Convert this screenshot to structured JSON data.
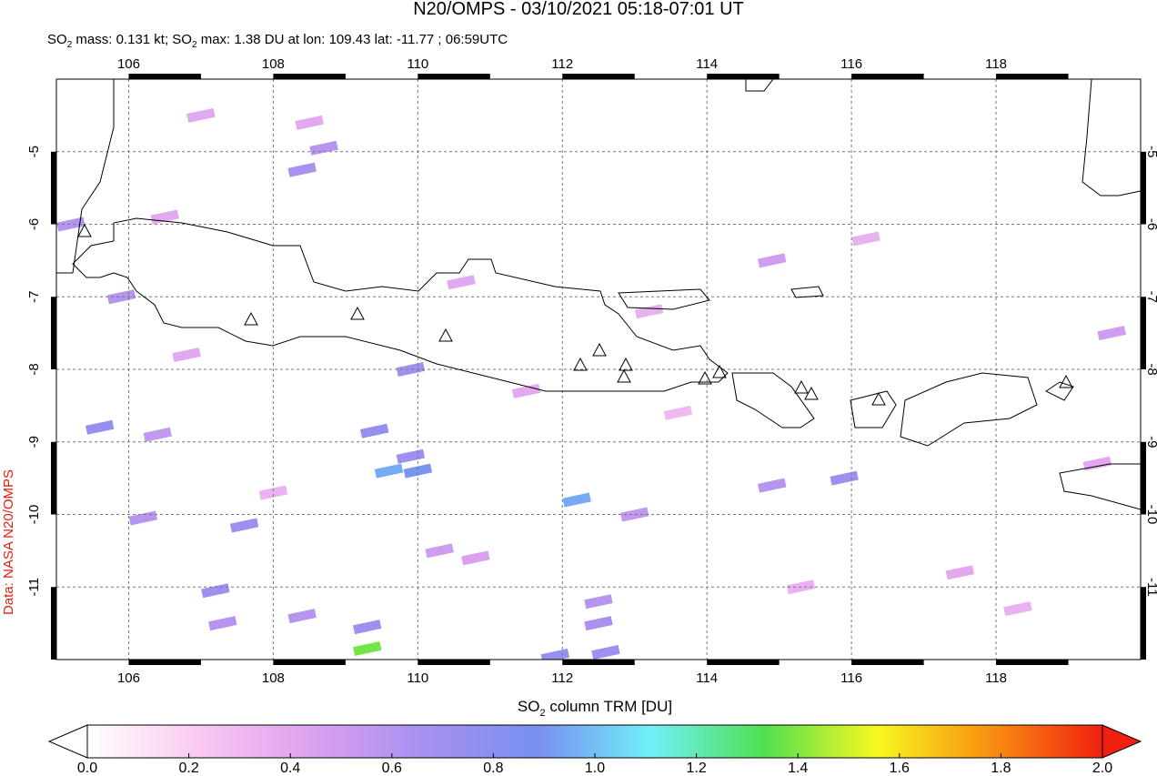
{
  "chart_data": {
    "type": "map",
    "title": "N20/OMPS - 03/10/2021 05:18-07:01 UT",
    "subtitle": [
      "SO",
      "2",
      " mass: 0.131 kt; SO",
      "2",
      " max: 1.38 DU at lon: 109.43 lat: -11.77 ; 06:59UTC"
    ],
    "credit": "Data: NASA N20/OMPS",
    "xlim": [
      105,
      120
    ],
    "ylim": [
      -12,
      -4
    ],
    "xticks": [
      106,
      108,
      110,
      112,
      114,
      116,
      118
    ],
    "yticks": [
      -5,
      -6,
      -7,
      -8,
      -9,
      -10,
      -11
    ],
    "grid": true,
    "pixels": [
      [
        109.6,
        -9.4,
        0.95
      ],
      [
        110.0,
        -9.4,
        0.9
      ],
      [
        109.3,
        -11.85,
        1.38
      ],
      [
        112.2,
        -9.8,
        0.95
      ],
      [
        109.4,
        -8.85,
        0.75
      ],
      [
        109.9,
        -8.0,
        0.7
      ],
      [
        107.6,
        -10.15,
        0.7
      ],
      [
        112.5,
        -11.5,
        0.65
      ],
      [
        112.6,
        -11.9,
        0.7
      ],
      [
        111.9,
        -11.95,
        0.75
      ],
      [
        109.3,
        -11.55,
        0.7
      ],
      [
        107.2,
        -11.05,
        0.7
      ],
      [
        106.2,
        -10.05,
        0.6
      ],
      [
        105.6,
        -8.8,
        0.75
      ],
      [
        108.7,
        -4.95,
        0.6
      ],
      [
        108.4,
        -5.25,
        0.65
      ],
      [
        105.2,
        -6.0,
        0.6
      ],
      [
        105.9,
        -7.0,
        0.6
      ],
      [
        115.9,
        -9.5,
        0.7
      ],
      [
        114.9,
        -9.6,
        0.6
      ],
      [
        109.9,
        -9.2,
        0.7
      ],
      [
        107.3,
        -11.5,
        0.6
      ],
      [
        108.4,
        -11.4,
        0.6
      ],
      [
        112.5,
        -11.2,
        0.6
      ],
      [
        119.6,
        -7.5,
        0.5
      ],
      [
        114.9,
        -6.5,
        0.5
      ],
      [
        106.4,
        -8.9,
        0.55
      ],
      [
        113.0,
        -10.0,
        0.55
      ],
      [
        107.0,
        -4.5,
        0.4
      ],
      [
        108.5,
        -4.6,
        0.4
      ],
      [
        106.5,
        -5.9,
        0.4
      ],
      [
        110.6,
        -6.8,
        0.4
      ],
      [
        111.5,
        -8.3,
        0.4
      ],
      [
        113.2,
        -7.2,
        0.35
      ],
      [
        116.2,
        -6.2,
        0.35
      ],
      [
        117.5,
        -10.8,
        0.4
      ],
      [
        118.3,
        -11.3,
        0.35
      ],
      [
        119.4,
        -9.3,
        0.4
      ],
      [
        110.8,
        -10.6,
        0.45
      ],
      [
        108.0,
        -9.7,
        0.35
      ],
      [
        115.3,
        -11.0,
        0.35
      ],
      [
        106.8,
        -7.8,
        0.4
      ],
      [
        110.3,
        -10.5,
        0.5
      ],
      [
        113.6,
        -8.6,
        0.3
      ]
    ],
    "colorbar": {
      "label": [
        "SO",
        "2",
        " column TRM [DU]"
      ],
      "lim": [
        0,
        2
      ],
      "ticks": [
        {
          "value": 0,
          "label": "0.0"
        },
        {
          "value": 0.2,
          "label": "0.2"
        },
        {
          "value": 0.4,
          "label": "0.4"
        },
        {
          "value": 0.6,
          "label": "0.6"
        },
        {
          "value": 0.8,
          "label": "0.8"
        },
        {
          "value": 1,
          "label": "1.0"
        },
        {
          "value": 1.2,
          "label": "1.2"
        },
        {
          "value": 1.4,
          "label": "1.4"
        },
        {
          "value": 1.6,
          "label": "1.6"
        },
        {
          "value": 1.8,
          "label": "1.8"
        },
        {
          "value": 2,
          "label": "2.0"
        }
      ],
      "colors": [
        "#ffffff",
        "#f9c8f0",
        "#dca0f0",
        "#a690f0",
        "#7890f0",
        "#70f0f8",
        "#50e050",
        "#f8f820",
        "#f89010",
        "#f02010"
      ]
    }
  }
}
